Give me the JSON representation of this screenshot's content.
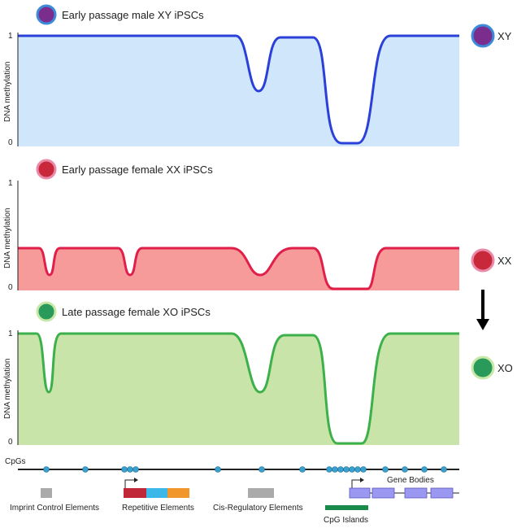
{
  "panels": [
    {
      "title": "Early passage male XY iPSCs",
      "label": "XY",
      "axis_label": "DNA methylation",
      "y_max": "1",
      "y_min": "0"
    },
    {
      "title": "Early passage female XX iPSCs",
      "label": "XX",
      "axis_label": "DNA methylation",
      "y_max": "1",
      "y_min": "0"
    },
    {
      "title": "Late passage female XO iPSCs",
      "label": "XO",
      "axis_label": "DNA methylation",
      "y_max": "1",
      "y_min": "0"
    }
  ],
  "track": {
    "label": "CpGs",
    "gene_bodies": "Gene Bodies",
    "elements": [
      "Imprint Control Elements",
      "Repetitive Elements",
      "Cis-Regulatory Elements",
      "CpG Islands"
    ]
  }
}
